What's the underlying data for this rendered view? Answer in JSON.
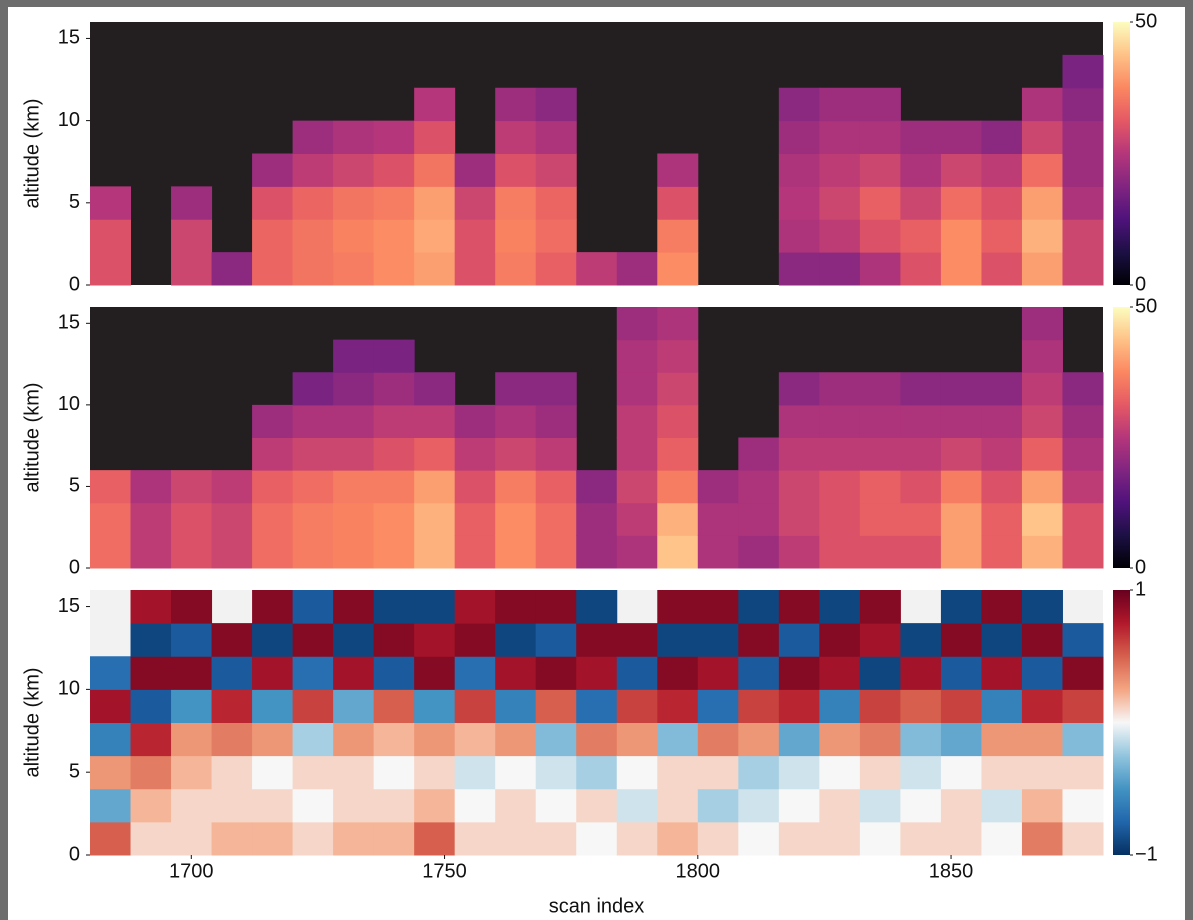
{
  "chart_data": [
    {
      "type": "heatmap",
      "ylabel": "altitude (km)",
      "colormap": "magma",
      "background": "#231f20",
      "xlim": [
        1680,
        1880
      ],
      "ylim": [
        0,
        16
      ],
      "yticks": [
        0,
        5,
        10,
        15
      ],
      "zlim": [
        0,
        50
      ],
      "zticks": [
        0,
        50
      ],
      "x": [
        1680,
        1688,
        1696,
        1704,
        1712,
        1720,
        1728,
        1736,
        1744,
        1752,
        1760,
        1768,
        1776,
        1784,
        1792,
        1800,
        1808,
        1816,
        1824,
        1832,
        1840,
        1848,
        1856,
        1864,
        1872,
        1880
      ],
      "y": [
        0,
        2,
        4,
        6,
        8,
        10,
        12,
        14,
        16
      ],
      "values": [
        [
          30,
          30,
          25,
          null,
          null,
          null,
          null,
          null
        ],
        [
          null,
          null,
          null,
          null,
          null,
          null,
          null,
          null
        ],
        [
          28,
          28,
          22,
          null,
          null,
          null,
          null,
          null
        ],
        [
          20,
          null,
          null,
          null,
          null,
          null,
          null,
          null
        ],
        [
          33,
          33,
          30,
          22,
          null,
          null,
          null,
          null
        ],
        [
          35,
          35,
          33,
          26,
          22,
          null,
          null,
          null
        ],
        [
          36,
          37,
          35,
          28,
          24,
          null,
          null,
          null
        ],
        [
          38,
          38,
          36,
          30,
          25,
          null,
          null,
          null
        ],
        [
          40,
          41,
          40,
          35,
          30,
          25,
          null,
          null
        ],
        [
          30,
          30,
          28,
          22,
          null,
          null,
          null,
          null
        ],
        [
          36,
          37,
          36,
          30,
          26,
          22,
          null,
          null
        ],
        [
          32,
          34,
          33,
          28,
          24,
          20,
          null,
          null
        ],
        [
          26,
          null,
          null,
          null,
          null,
          null,
          null,
          null
        ],
        [
          22,
          null,
          null,
          null,
          null,
          null,
          null,
          null
        ],
        [
          38,
          36,
          30,
          24,
          null,
          null,
          null,
          null
        ],
        [
          null,
          null,
          null,
          null,
          null,
          null,
          null,
          null
        ],
        [
          null,
          null,
          null,
          null,
          null,
          null,
          null,
          null
        ],
        [
          20,
          24,
          25,
          24,
          22,
          20,
          null,
          null
        ],
        [
          20,
          26,
          28,
          26,
          24,
          22,
          null,
          null
        ],
        [
          24,
          30,
          32,
          28,
          24,
          22,
          null,
          null
        ],
        [
          30,
          32,
          28,
          24,
          22,
          null,
          null,
          null
        ],
        [
          38,
          38,
          34,
          28,
          22,
          null,
          null,
          null
        ],
        [
          30,
          32,
          30,
          26,
          20,
          null,
          null,
          null
        ],
        [
          40,
          42,
          40,
          34,
          28,
          24,
          null,
          null
        ],
        [
          28,
          28,
          24,
          22,
          22,
          20,
          18,
          null
        ]
      ]
    },
    {
      "type": "heatmap",
      "ylabel": "altitude (km)",
      "colormap": "magma",
      "background": "#231f20",
      "xlim": [
        1680,
        1880
      ],
      "ylim": [
        0,
        16
      ],
      "yticks": [
        0,
        5,
        10,
        15
      ],
      "zlim": [
        0,
        50
      ],
      "zticks": [
        0,
        50
      ],
      "x": [
        1680,
        1688,
        1696,
        1704,
        1712,
        1720,
        1728,
        1736,
        1744,
        1752,
        1760,
        1768,
        1776,
        1784,
        1792,
        1800,
        1808,
        1816,
        1824,
        1832,
        1840,
        1848,
        1856,
        1864,
        1872,
        1880
      ],
      "y": [
        0,
        2,
        4,
        6,
        8,
        10,
        12,
        14,
        16
      ],
      "values": [
        [
          34,
          34,
          32,
          null,
          null,
          null,
          null,
          null
        ],
        [
          26,
          26,
          24,
          null,
          null,
          null,
          null,
          null
        ],
        [
          30,
          30,
          28,
          null,
          null,
          null,
          null,
          null
        ],
        [
          28,
          28,
          26,
          null,
          null,
          null,
          null,
          null
        ],
        [
          34,
          34,
          32,
          26,
          22,
          null,
          null,
          null
        ],
        [
          36,
          36,
          34,
          28,
          24,
          18,
          null,
          null
        ],
        [
          37,
          37,
          36,
          28,
          24,
          20,
          18,
          null
        ],
        [
          38,
          38,
          36,
          30,
          26,
          22,
          18,
          null
        ],
        [
          42,
          42,
          40,
          32,
          26,
          20,
          null,
          null
        ],
        [
          32,
          32,
          30,
          26,
          22,
          null,
          null,
          null
        ],
        [
          38,
          38,
          36,
          28,
          24,
          20,
          null,
          null
        ],
        [
          34,
          34,
          32,
          26,
          22,
          20,
          null,
          null
        ],
        [
          22,
          22,
          20,
          null,
          null,
          null,
          null,
          null
        ],
        [
          24,
          26,
          28,
          26,
          26,
          24,
          24,
          22
        ],
        [
          44,
          42,
          36,
          32,
          30,
          28,
          26,
          24
        ],
        [
          24,
          24,
          22,
          null,
          null,
          null,
          null,
          null
        ],
        [
          22,
          24,
          24,
          22,
          null,
          null,
          null,
          null
        ],
        [
          26,
          28,
          28,
          26,
          24,
          20,
          null,
          null
        ],
        [
          30,
          30,
          30,
          26,
          24,
          22,
          null,
          null
        ],
        [
          30,
          32,
          32,
          26,
          24,
          22,
          null,
          null
        ],
        [
          30,
          32,
          30,
          26,
          24,
          20,
          null,
          null
        ],
        [
          40,
          40,
          36,
          28,
          24,
          20,
          null,
          null
        ],
        [
          32,
          32,
          30,
          26,
          24,
          20,
          null,
          null
        ],
        [
          42,
          44,
          40,
          32,
          28,
          26,
          24,
          22
        ],
        [
          30,
          30,
          26,
          24,
          22,
          20,
          null,
          null
        ]
      ]
    },
    {
      "type": "heatmap",
      "ylabel": "altitude (km)",
      "xlabel": "scan index",
      "colormap": "RdBu_r",
      "background": "#f2f2f2",
      "xlim": [
        1680,
        1880
      ],
      "ylim": [
        0,
        16
      ],
      "yticks": [
        0,
        5,
        10,
        15
      ],
      "xticks": [
        1700,
        1750,
        1800,
        1850
      ],
      "zlim": [
        -1,
        1
      ],
      "zticks": [
        {
          "value": -1,
          "label": "−1"
        },
        1
      ],
      "x": [
        1680,
        1688,
        1696,
        1704,
        1712,
        1720,
        1728,
        1736,
        1744,
        1752,
        1760,
        1768,
        1776,
        1784,
        1792,
        1800,
        1808,
        1816,
        1824,
        1832,
        1840,
        1848,
        1856,
        1864,
        1872,
        1880
      ],
      "y": [
        0,
        2,
        4,
        6,
        8,
        10,
        12,
        14,
        16
      ],
      "values": [
        [
          0.5,
          -0.4,
          0.3,
          -0.6,
          0.8,
          -0.7,
          null,
          null
        ],
        [
          0.1,
          0.2,
          0.4,
          0.7,
          -0.8,
          0.9,
          -0.9,
          0.8
        ],
        [
          0.1,
          0.1,
          0.2,
          0.3,
          -0.5,
          0.9,
          -0.8,
          0.9
        ],
        [
          0.2,
          0.1,
          0.1,
          0.4,
          0.7,
          -0.8,
          0.9,
          null
        ],
        [
          0.2,
          0.1,
          0.0,
          0.3,
          -0.5,
          0.8,
          -0.9,
          0.9
        ],
        [
          0.1,
          0.0,
          0.1,
          -0.2,
          0.6,
          -0.7,
          0.9,
          -0.8
        ],
        [
          0.2,
          0.1,
          0.1,
          0.3,
          -0.4,
          0.8,
          -0.9,
          0.9
        ],
        [
          0.2,
          0.1,
          0.0,
          0.2,
          0.5,
          -0.8,
          0.9,
          -0.9
        ],
        [
          0.5,
          0.2,
          0.1,
          0.3,
          -0.5,
          0.9,
          0.8,
          -0.9
        ],
        [
          0.1,
          0.0,
          -0.1,
          0.2,
          0.6,
          -0.7,
          0.9,
          0.8
        ],
        [
          0.1,
          0.1,
          0.0,
          0.3,
          -0.6,
          0.8,
          -0.9,
          0.9
        ],
        [
          0.1,
          0.0,
          -0.1,
          -0.3,
          0.5,
          0.9,
          -0.8,
          0.9
        ],
        [
          0.0,
          0.1,
          -0.2,
          0.4,
          -0.7,
          0.8,
          0.9,
          -0.9
        ],
        [
          0.1,
          -0.1,
          0.0,
          0.3,
          0.6,
          -0.8,
          0.9,
          null
        ],
        [
          0.2,
          0.1,
          0.1,
          -0.3,
          0.7,
          0.9,
          -0.9,
          0.9
        ],
        [
          0.1,
          -0.2,
          0.1,
          0.4,
          -0.7,
          0.8,
          -0.9,
          0.9
        ],
        [
          0.0,
          -0.1,
          -0.2,
          0.3,
          0.6,
          -0.8,
          0.9,
          -0.9
        ],
        [
          0.1,
          0.0,
          -0.1,
          -0.4,
          0.7,
          0.9,
          -0.8,
          0.9
        ],
        [
          0.1,
          0.1,
          0.0,
          0.3,
          -0.6,
          0.8,
          0.9,
          -0.9
        ],
        [
          0.0,
          -0.1,
          0.1,
          0.4,
          0.6,
          -0.9,
          0.8,
          0.9
        ],
        [
          0.1,
          0.0,
          -0.1,
          -0.3,
          0.5,
          0.8,
          -0.9,
          null
        ],
        [
          0.1,
          0.1,
          0.0,
          -0.4,
          0.6,
          -0.8,
          0.9,
          -0.9
        ],
        [
          0.0,
          -0.1,
          0.1,
          0.3,
          -0.6,
          0.8,
          -0.9,
          0.9
        ],
        [
          0.4,
          0.2,
          0.1,
          0.3,
          0.7,
          -0.8,
          0.9,
          -0.9
        ],
        [
          0.1,
          0.0,
          0.1,
          -0.3,
          0.6,
          0.9,
          -0.8,
          null
        ]
      ]
    }
  ]
}
